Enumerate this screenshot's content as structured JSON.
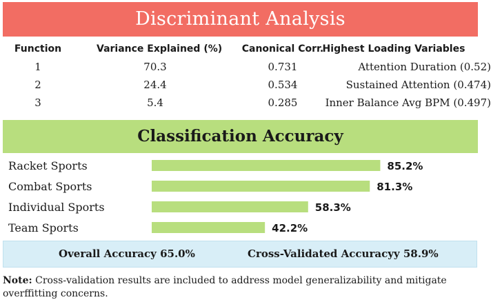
{
  "header": {
    "title": "Discriminant Analysis"
  },
  "table": {
    "columns": [
      "Function",
      "Variance Explained (%)",
      "Canonical Corr.",
      "Highest Loading Variables"
    ],
    "rows": [
      {
        "function": "1",
        "variance": "70.3",
        "corr": "0.731",
        "loading": "Attention Duration (0.52)"
      },
      {
        "function": "2",
        "variance": "24.4",
        "corr": "0.534",
        "loading": "Sustained Attention (0.474)"
      },
      {
        "function": "3",
        "variance": "5.4",
        "corr": "0.285",
        "loading": "Inner Balance Avg BPM (0.497)"
      }
    ]
  },
  "section": {
    "title": "Classification Accuracy"
  },
  "chart_data": {
    "type": "bar",
    "orientation": "horizontal",
    "title": "Classification Accuracy",
    "categories": [
      "Racket Sports",
      "Combat Sports",
      "Individual Sports",
      "Team Sports"
    ],
    "values": [
      85.2,
      81.3,
      58.3,
      42.2
    ],
    "value_labels": [
      "85.2%",
      "81.3%",
      "58.3%",
      "42.2%"
    ],
    "xlim": [
      0,
      100
    ],
    "bar_color": "#b8de7e",
    "grid": false
  },
  "summary": {
    "overall": "Overall Accuracy 65.0%",
    "cross_validated": "Cross-Validated Accuracyy 58.9%"
  },
  "note": {
    "label": "Note:",
    "text": " Cross-validation results are included to address model generalizability and mitigate overffitting concerns."
  },
  "colors": {
    "title_bg": "#f26d63",
    "section_bg": "#b8de7e",
    "summary_bg": "#d8eef7"
  }
}
